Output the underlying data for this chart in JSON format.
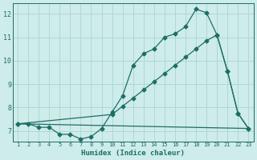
{
  "xlabel": "Humidex (Indice chaleur)",
  "bg_color": "#ceecea",
  "line_color": "#1e6e65",
  "grid_color": "#aed8d4",
  "xlim": [
    0.5,
    23.5
  ],
  "ylim": [
    6.55,
    12.45
  ],
  "yticks": [
    7,
    8,
    9,
    10,
    11,
    12
  ],
  "xticks": [
    1,
    2,
    3,
    4,
    5,
    6,
    7,
    8,
    9,
    10,
    11,
    12,
    13,
    14,
    15,
    16,
    17,
    18,
    19,
    20,
    21,
    22,
    23
  ],
  "line1_x": [
    1,
    2,
    3,
    4,
    5,
    6,
    7,
    8,
    9,
    10,
    11,
    12,
    13,
    14,
    15,
    16,
    17,
    18,
    19,
    20,
    21,
    22,
    23
  ],
  "line1_y": [
    7.3,
    7.3,
    7.15,
    7.15,
    6.85,
    6.85,
    6.65,
    6.75,
    7.1,
    7.8,
    8.5,
    9.8,
    10.3,
    10.5,
    11.0,
    11.15,
    11.45,
    12.2,
    12.05,
    11.1,
    9.55,
    7.75,
    7.1
  ],
  "line2_x": [
    1,
    10,
    11,
    12,
    13,
    14,
    15,
    16,
    17,
    18,
    19,
    20,
    21,
    22,
    23
  ],
  "line2_y": [
    7.3,
    7.7,
    8.05,
    8.4,
    8.75,
    9.1,
    9.45,
    9.8,
    10.15,
    10.5,
    10.85,
    11.1,
    9.55,
    7.75,
    7.1
  ],
  "line3_x": [
    1,
    23
  ],
  "line3_y": [
    7.3,
    7.1
  ],
  "markersize": 2.5,
  "linewidth": 0.9
}
